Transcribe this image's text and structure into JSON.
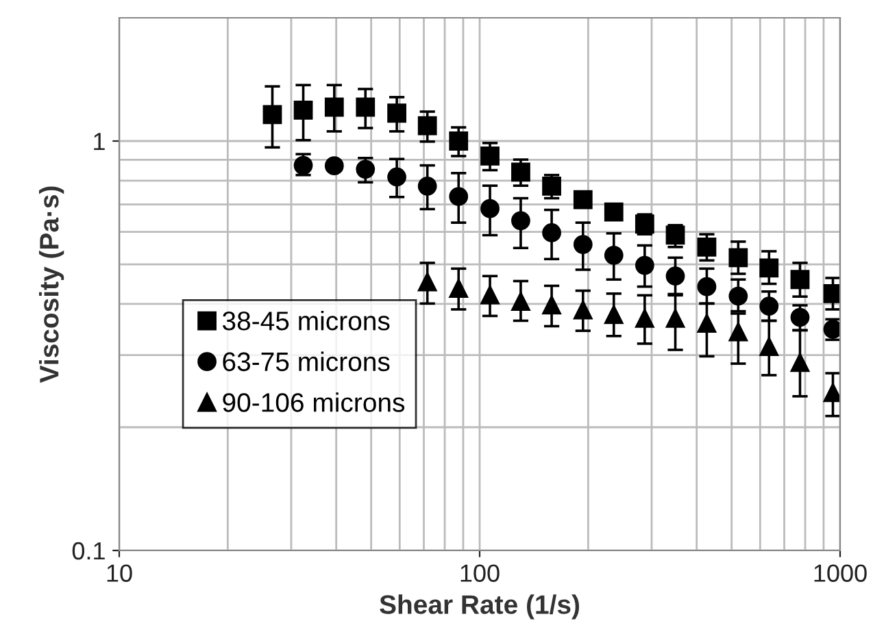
{
  "chart_data": {
    "type": "scatter",
    "xlabel": "Shear Rate (1/s)",
    "ylabel": "Viscosity (Pa·s)",
    "log": "xy",
    "grid": true,
    "legend": "left",
    "xlim": [
      10,
      1000
    ],
    "ylim": [
      0.1,
      2
    ],
    "xticks": [
      10,
      {
        "value": 20,
        "label": null
      },
      {
        "value": 30,
        "label": null
      },
      {
        "value": 40,
        "label": null
      },
      {
        "value": 50,
        "label": null
      },
      {
        "value": 60,
        "label": null
      },
      {
        "value": 70,
        "label": null
      },
      {
        "value": 80,
        "label": null
      },
      {
        "value": 90,
        "label": null
      },
      100,
      {
        "value": 200,
        "label": null
      },
      {
        "value": 300,
        "label": null
      },
      {
        "value": 400,
        "label": null
      },
      {
        "value": 500,
        "label": null
      },
      {
        "value": 600,
        "label": null
      },
      {
        "value": 700,
        "label": null
      },
      {
        "value": 800,
        "label": null
      },
      {
        "value": 900,
        "label": null
      },
      1000
    ],
    "yticks": [
      0.1,
      {
        "value": 0.2,
        "label": null
      },
      {
        "value": 0.3,
        "label": null
      },
      {
        "value": 0.4,
        "label": null
      },
      {
        "value": 0.5,
        "label": null
      },
      {
        "value": 0.6,
        "label": null
      },
      {
        "value": 0.7,
        "label": null
      },
      {
        "value": 0.8,
        "label": null
      },
      {
        "value": 0.9,
        "label": null
      },
      1
    ],
    "series": [
      {
        "name": "38-45 microns",
        "color": "#000000",
        "marker": "square",
        "x": [
          26.6,
          32.4,
          39.5,
          48.2,
          58.9,
          71.6,
          87.4,
          106.8,
          130,
          158.4,
          193.5,
          235.6,
          287,
          349,
          426.7,
          521.6,
          635,
          774,
          955
        ],
        "values": [
          1.16,
          1.19,
          1.21,
          1.21,
          1.17,
          1.09,
          1.0,
          0.919,
          0.84,
          0.776,
          0.719,
          0.671,
          0.627,
          0.589,
          0.551,
          0.519,
          0.49,
          0.459,
          0.424
        ],
        "errors": [
          [
            0.965,
            1.36
          ],
          [
            1.005,
            1.37
          ],
          [
            1.056,
            1.37
          ],
          [
            1.076,
            1.34
          ],
          [
            1.056,
            1.28
          ],
          [
            0.997,
            1.18
          ],
          [
            0.919,
            1.08
          ],
          [
            0.849,
            0.989
          ],
          [
            0.778,
            0.901
          ],
          [
            0.725,
            0.826
          ],
          [
            0.69,
            0.749
          ],
          null,
          [
            0.592,
            0.662
          ],
          [
            0.551,
            0.623
          ],
          [
            0.511,
            0.592
          ],
          [
            0.474,
            0.568
          ],
          [
            0.448,
            0.538
          ],
          [
            0.417,
            0.504
          ],
          [
            0.388,
            0.463
          ]
        ]
      },
      {
        "name": "63-75 microns",
        "color": "#000000",
        "marker": "circle",
        "x": [
          32.4,
          39.5,
          48.2,
          58.9,
          71.6,
          87.4,
          106.8,
          130,
          158.4,
          193.5,
          235.6,
          287,
          349,
          426.7,
          521.6,
          635,
          774,
          955
        ],
        "values": [
          0.872,
          0.87,
          0.853,
          0.817,
          0.776,
          0.732,
          0.684,
          0.639,
          0.597,
          0.559,
          0.526,
          0.497,
          0.468,
          0.441,
          0.418,
          0.395,
          0.371,
          0.347
        ],
        "errors": [
          [
            0.826,
            0.929
          ],
          null,
          [
            0.793,
            0.909
          ],
          [
            0.73,
            0.904
          ],
          [
            0.682,
            0.872
          ],
          [
            0.632,
            0.835
          ],
          [
            0.589,
            0.778
          ],
          [
            0.548,
            0.725
          ],
          [
            0.515,
            0.679
          ],
          [
            0.485,
            0.632
          ],
          [
            0.459,
            0.595
          ],
          [
            0.441,
            0.556
          ],
          [
            0.423,
            0.519
          ],
          [
            0.401,
            0.488
          ],
          [
            0.384,
            0.459
          ],
          [
            0.364,
            0.429
          ],
          [
            0.345,
            0.397
          ],
          [
            0.327,
            0.367
          ]
        ]
      },
      {
        "name": "90-106 microns",
        "color": "#000000",
        "marker": "triangle",
        "x": [
          71.6,
          87.4,
          106.8,
          130,
          158.4,
          193.5,
          235.6,
          287,
          349,
          426.7,
          521.6,
          635,
          774,
          955
        ],
        "values": [
          0.453,
          0.437,
          0.421,
          0.406,
          0.398,
          0.387,
          0.377,
          0.369,
          0.369,
          0.359,
          0.342,
          0.315,
          0.288,
          0.243
        ],
        "errors": [
          [
            0.401,
            0.504
          ],
          [
            0.388,
            0.488
          ],
          [
            0.374,
            0.468
          ],
          [
            0.364,
            0.455
          ],
          [
            0.353,
            0.443
          ],
          [
            0.344,
            0.431
          ],
          [
            0.334,
            0.424
          ],
          [
            0.32,
            0.42
          ],
          [
            0.309,
            0.42
          ],
          [
            0.298,
            0.401
          ],
          [
            0.286,
            0.379
          ],
          [
            0.268,
            0.364
          ],
          [
            0.238,
            0.345
          ],
          [
            0.213,
            0.271
          ]
        ]
      }
    ]
  }
}
